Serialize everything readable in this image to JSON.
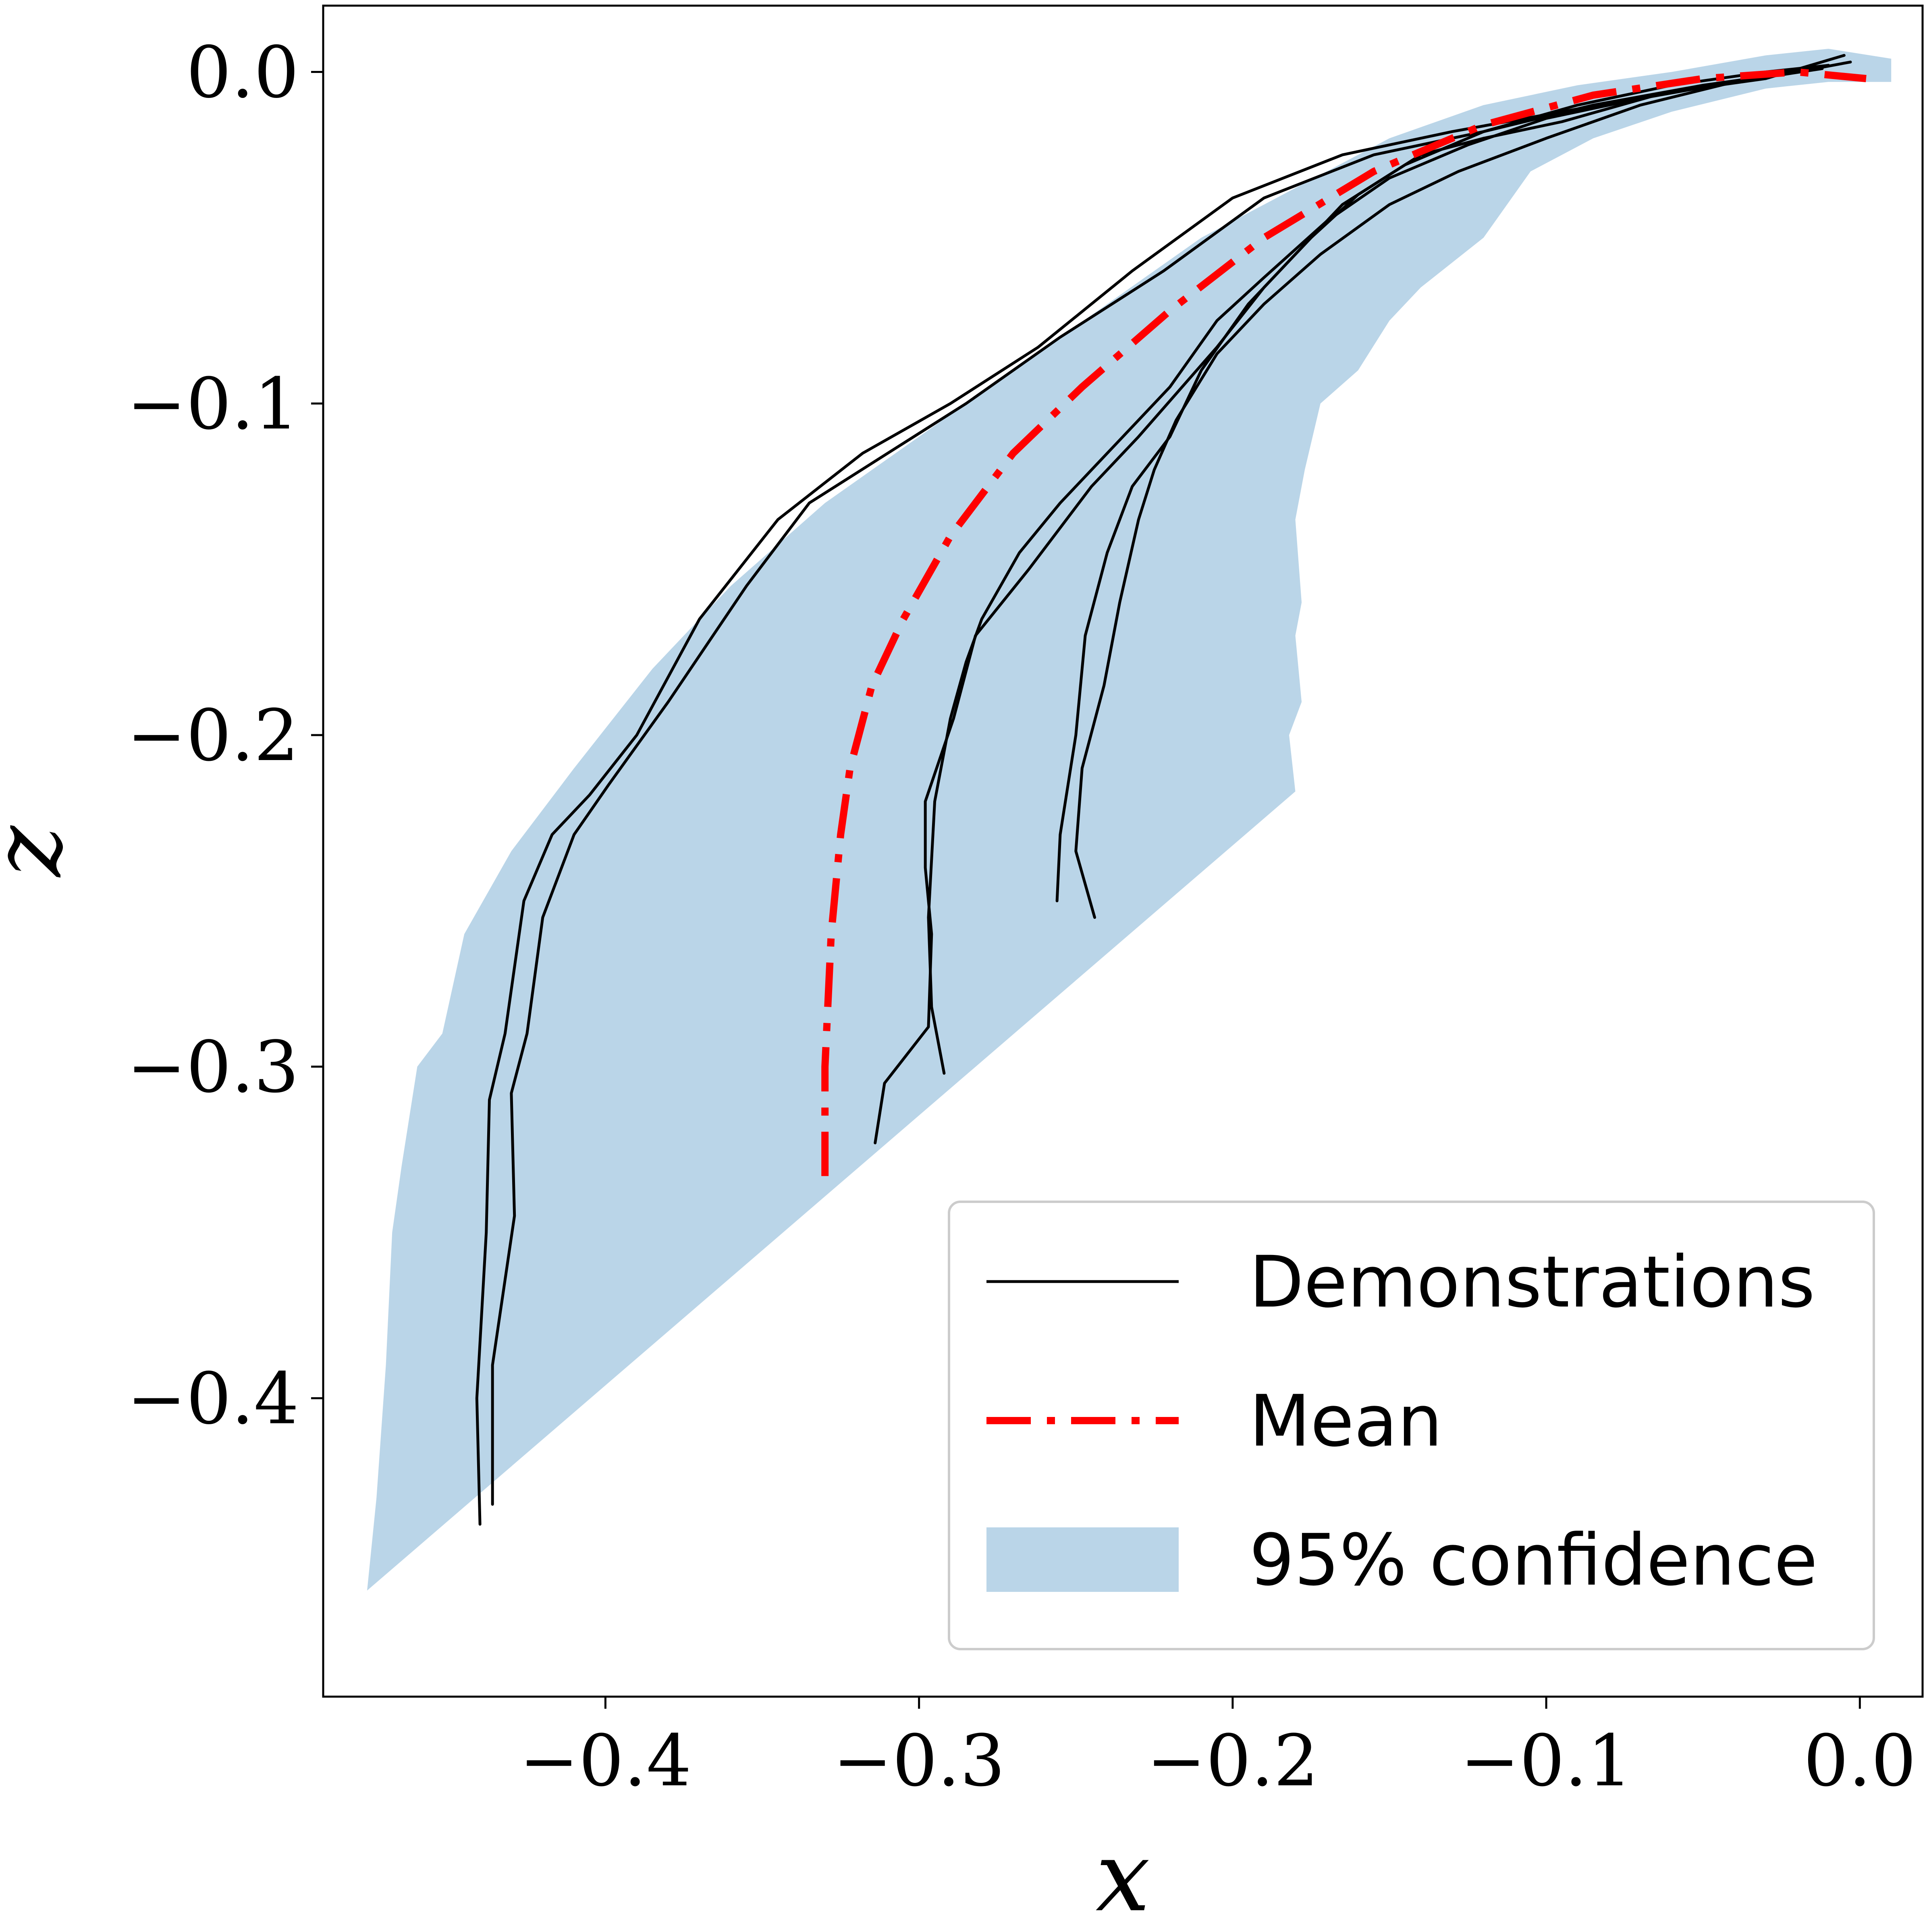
{
  "chart_data": {
    "type": "line",
    "xlabel": "x",
    "ylabel": "z",
    "xlim": [
      -0.49,
      0.02
    ],
    "ylim": [
      -0.49,
      0.02
    ],
    "x_ticks": [
      -0.4,
      -0.3,
      -0.2,
      -0.1,
      0.0
    ],
    "x_tick_labels": [
      "−0.4",
      "−0.3",
      "−0.2",
      "−0.1",
      "0.0"
    ],
    "y_ticks": [
      0.0,
      -0.1,
      -0.2,
      -0.3,
      -0.4
    ],
    "y_tick_labels": [
      "0.0",
      "−0.1",
      "−0.2",
      "−0.3",
      "−0.4"
    ],
    "grid": false,
    "legend_position": "lower-right",
    "colors": {
      "demonstrations": "#000000",
      "mean": "#ff0000",
      "confidence": "#bad5e8"
    },
    "legend": [
      {
        "label": "Demonstrations",
        "style": "line"
      },
      {
        "label": "Mean",
        "style": "dashdot"
      },
      {
        "label": "95% confidence",
        "style": "patch"
      }
    ],
    "series": [
      {
        "name": "Demonstrations",
        "style": "line",
        "color": "#000000",
        "traces": [
          {
            "x": [
              -0.44,
              -0.441,
              -0.438,
              -0.437,
              -0.432,
              -0.426,
              -0.417,
              -0.405,
              -0.39,
              -0.37,
              -0.345,
              -0.318,
              -0.29,
              -0.262,
              -0.232,
              -0.2,
              -0.165,
              -0.13,
              -0.095,
              -0.06,
              -0.03,
              -0.005
            ],
            "z": [
              -0.438,
              -0.4,
              -0.35,
              -0.31,
              -0.29,
              -0.25,
              -0.23,
              -0.218,
              -0.2,
              -0.165,
              -0.135,
              -0.115,
              -0.1,
              -0.083,
              -0.06,
              -0.038,
              -0.025,
              -0.018,
              -0.012,
              -0.006,
              -0.002,
              0.005
            ]
          },
          {
            "x": [
              -0.436,
              -0.436,
              -0.429,
              -0.43,
              -0.425,
              -0.42,
              -0.41,
              -0.399,
              -0.38,
              -0.355,
              -0.335,
              -0.31,
              -0.285,
              -0.255,
              -0.222,
              -0.19,
              -0.155,
              -0.12,
              -0.085,
              -0.05,
              -0.02,
              -0.003
            ],
            "z": [
              -0.432,
              -0.39,
              -0.345,
              -0.308,
              -0.29,
              -0.255,
              -0.23,
              -0.215,
              -0.19,
              -0.155,
              -0.13,
              -0.115,
              -0.1,
              -0.08,
              -0.06,
              -0.038,
              -0.025,
              -0.018,
              -0.01,
              -0.004,
              0.0,
              0.003
            ]
          },
          {
            "x": [
              -0.314,
              -0.311,
              -0.297,
              -0.296,
              -0.298,
              -0.298,
              -0.289,
              -0.282,
              -0.265,
              -0.245,
              -0.23,
              -0.205,
              -0.19,
              -0.175,
              -0.16,
              -0.14,
              -0.12,
              -0.095,
              -0.065,
              -0.035,
              -0.01
            ],
            "z": [
              -0.323,
              -0.305,
              -0.288,
              -0.26,
              -0.24,
              -0.22,
              -0.195,
              -0.17,
              -0.15,
              -0.125,
              -0.11,
              -0.083,
              -0.065,
              -0.05,
              -0.037,
              -0.025,
              -0.02,
              -0.015,
              -0.007,
              -0.002,
              0.002
            ]
          },
          {
            "x": [
              -0.292,
              -0.296,
              -0.297,
              -0.295,
              -0.29,
              -0.285,
              -0.28,
              -0.268,
              -0.255,
              -0.235,
              -0.22,
              -0.205,
              -0.19,
              -0.17,
              -0.15,
              -0.125,
              -0.1,
              -0.07,
              -0.04,
              -0.015
            ],
            "z": [
              -0.302,
              -0.282,
              -0.255,
              -0.22,
              -0.195,
              -0.178,
              -0.165,
              -0.145,
              -0.13,
              -0.11,
              -0.095,
              -0.075,
              -0.062,
              -0.045,
              -0.032,
              -0.022,
              -0.014,
              -0.008,
              -0.003,
              0.001
            ]
          },
          {
            "x": [
              -0.256,
              -0.255,
              -0.25,
              -0.247,
              -0.24,
              -0.232,
              -0.22,
              -0.21,
              -0.195,
              -0.18,
              -0.165,
              -0.145,
              -0.12,
              -0.09,
              -0.06,
              -0.03,
              -0.01
            ],
            "z": [
              -0.25,
              -0.23,
              -0.2,
              -0.17,
              -0.145,
              -0.125,
              -0.11,
              -0.09,
              -0.07,
              -0.055,
              -0.04,
              -0.028,
              -0.018,
              -0.01,
              -0.004,
              0.0,
              0.002
            ]
          },
          {
            "x": [
              -0.244,
              -0.25,
              -0.248,
              -0.241,
              -0.236,
              -0.23,
              -0.225,
              -0.218,
              -0.205,
              -0.19,
              -0.172,
              -0.15,
              -0.128,
              -0.1,
              -0.07,
              -0.04,
              -0.012
            ],
            "z": [
              -0.255,
              -0.235,
              -0.21,
              -0.185,
              -0.16,
              -0.135,
              -0.12,
              -0.105,
              -0.085,
              -0.07,
              -0.055,
              -0.04,
              -0.03,
              -0.02,
              -0.01,
              -0.003,
              0.001
            ]
          }
        ]
      },
      {
        "name": "Mean",
        "style": "dashdot",
        "color": "#ff0000",
        "x": [
          -0.33,
          -0.33,
          -0.328,
          -0.325,
          -0.322,
          -0.315,
          -0.305,
          -0.29,
          -0.27,
          -0.248,
          -0.22,
          -0.19,
          -0.155,
          -0.12,
          -0.085,
          -0.05,
          -0.02,
          0.002
        ],
        "z": [
          -0.333,
          -0.3,
          -0.26,
          -0.23,
          -0.21,
          -0.185,
          -0.165,
          -0.14,
          -0.115,
          -0.095,
          -0.072,
          -0.05,
          -0.03,
          -0.016,
          -0.007,
          -0.002,
          0.0,
          -0.002
        ]
      },
      {
        "name": "95% confidence",
        "style": "band",
        "color": "#bad5e8",
        "x": [
          -0.476,
          -0.473,
          -0.47,
          -0.468,
          -0.465,
          -0.46,
          -0.452,
          -0.445,
          -0.43,
          -0.41,
          -0.385,
          -0.36,
          -0.33,
          -0.3,
          -0.27,
          -0.24,
          -0.21,
          -0.18,
          -0.15,
          -0.12,
          -0.09,
          -0.06,
          -0.03,
          -0.01,
          0.01,
          0.01,
          -0.01,
          -0.03,
          -0.06,
          -0.085,
          -0.105,
          -0.12,
          -0.14,
          -0.15,
          -0.16,
          -0.172,
          -0.177,
          -0.18,
          -0.178,
          -0.18,
          -0.178,
          -0.182,
          -0.18
        ],
        "z": [
          -0.458,
          -0.43,
          -0.39,
          -0.35,
          -0.33,
          -0.3,
          -0.29,
          -0.26,
          -0.235,
          -0.21,
          -0.18,
          -0.155,
          -0.13,
          -0.11,
          -0.09,
          -0.07,
          -0.05,
          -0.035,
          -0.02,
          -0.01,
          -0.004,
          0.0,
          0.005,
          0.007,
          0.004,
          -0.003,
          -0.003,
          -0.005,
          -0.012,
          -0.02,
          -0.03,
          -0.05,
          -0.065,
          -0.075,
          -0.09,
          -0.1,
          -0.12,
          -0.135,
          -0.16,
          -0.17,
          -0.19,
          -0.2,
          -0.217
        ]
      }
    ]
  }
}
